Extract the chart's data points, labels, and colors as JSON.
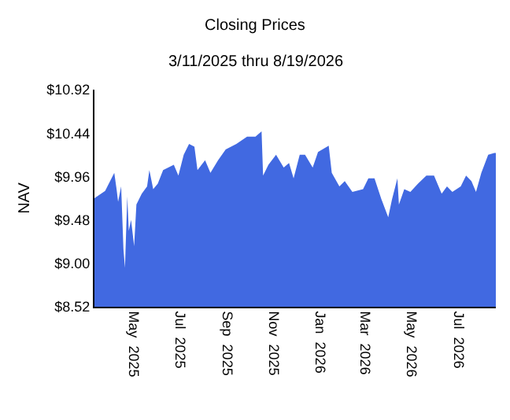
{
  "chart_data": {
    "type": "area",
    "title": "Closing Prices",
    "subtitle": "3/11/2025 thru 8/19/2026",
    "ylabel": "NAV",
    "x": [
      "2025-03-11",
      "2025-03-25",
      "2025-04-06",
      "2025-04-09",
      "2025-04-11",
      "2025-04-15",
      "2025-04-18",
      "2025-04-20",
      "2025-04-23",
      "2025-04-25",
      "2025-04-28",
      "2025-05-02",
      "2025-05-05",
      "2025-05-12",
      "2025-05-19",
      "2025-05-22",
      "2025-05-27",
      "2025-06-02",
      "2025-06-09",
      "2025-06-23",
      "2025-06-29",
      "2025-07-06",
      "2025-07-13",
      "2025-07-20",
      "2025-07-24",
      "2025-08-03",
      "2025-08-10",
      "2025-08-20",
      "2025-08-30",
      "2025-09-13",
      "2025-09-27",
      "2025-10-08",
      "2025-10-16",
      "2025-10-18",
      "2025-10-25",
      "2025-11-04",
      "2025-11-14",
      "2025-11-21",
      "2025-11-27",
      "2025-12-05",
      "2025-12-12",
      "2025-12-22",
      "2025-12-29",
      "2026-01-12",
      "2026-01-16",
      "2026-01-26",
      "2026-02-02",
      "2026-02-12",
      "2026-02-26",
      "2026-03-05",
      "2026-03-13",
      "2026-03-22",
      "2026-03-31",
      "2026-04-05",
      "2026-04-12",
      "2026-04-14",
      "2026-04-21",
      "2026-04-29",
      "2026-05-09",
      "2026-05-20",
      "2026-05-30",
      "2026-06-09",
      "2026-06-16",
      "2026-06-23",
      "2026-07-04",
      "2026-07-11",
      "2026-07-18",
      "2026-07-24",
      "2026-07-31",
      "2026-08-09",
      "2026-08-17",
      "2026-08-19"
    ],
    "series": [
      {
        "color": "#4169e1",
        "values": [
          9.72,
          9.8,
          10.0,
          9.82,
          9.68,
          9.85,
          9.16,
          8.95,
          9.74,
          9.36,
          9.48,
          9.19,
          9.65,
          9.77,
          9.85,
          10.03,
          9.82,
          9.88,
          10.03,
          10.09,
          9.97,
          10.2,
          10.32,
          10.29,
          10.03,
          10.14,
          10.0,
          10.14,
          10.26,
          10.32,
          10.4,
          10.4,
          10.46,
          9.97,
          10.09,
          10.2,
          10.06,
          10.11,
          9.94,
          10.2,
          10.2,
          10.06,
          10.23,
          10.3,
          10.0,
          9.85,
          9.91,
          9.79,
          9.82,
          9.94,
          9.94,
          9.71,
          9.51,
          9.71,
          9.94,
          9.65,
          9.82,
          9.79,
          9.88,
          9.97,
          9.97,
          9.77,
          9.85,
          9.79,
          9.85,
          9.97,
          9.91,
          9.79,
          10.0,
          10.2,
          10.22,
          10.22
        ]
      }
    ],
    "xlim": [
      "2025-03-11",
      "2026-08-19"
    ],
    "xticks": [
      {
        "value": "2025-05-01",
        "label": "May  2025"
      },
      {
        "value": "2025-07-01",
        "label": "Jul  2025"
      },
      {
        "value": "2025-09-01",
        "label": "Sep  2025"
      },
      {
        "value": "2025-11-01",
        "label": "Nov  2025"
      },
      {
        "value": "2026-01-01",
        "label": "Jan  2026"
      },
      {
        "value": "2026-03-01",
        "label": "Mar  2026"
      },
      {
        "value": "2026-05-01",
        "label": "May  2026"
      },
      {
        "value": "2026-07-01",
        "label": "Jul  2026"
      }
    ],
    "ylim": [
      8.52,
      10.92
    ],
    "yticks": [
      {
        "value": 8.52,
        "label": "$8.52"
      },
      {
        "value": 9.0,
        "label": "$9.00"
      },
      {
        "value": 9.48,
        "label": "$9.48"
      },
      {
        "value": 9.96,
        "label": "$9.96"
      },
      {
        "value": 10.44,
        "label": "$10.44"
      },
      {
        "value": 10.92,
        "label": "$10.92"
      }
    ]
  }
}
